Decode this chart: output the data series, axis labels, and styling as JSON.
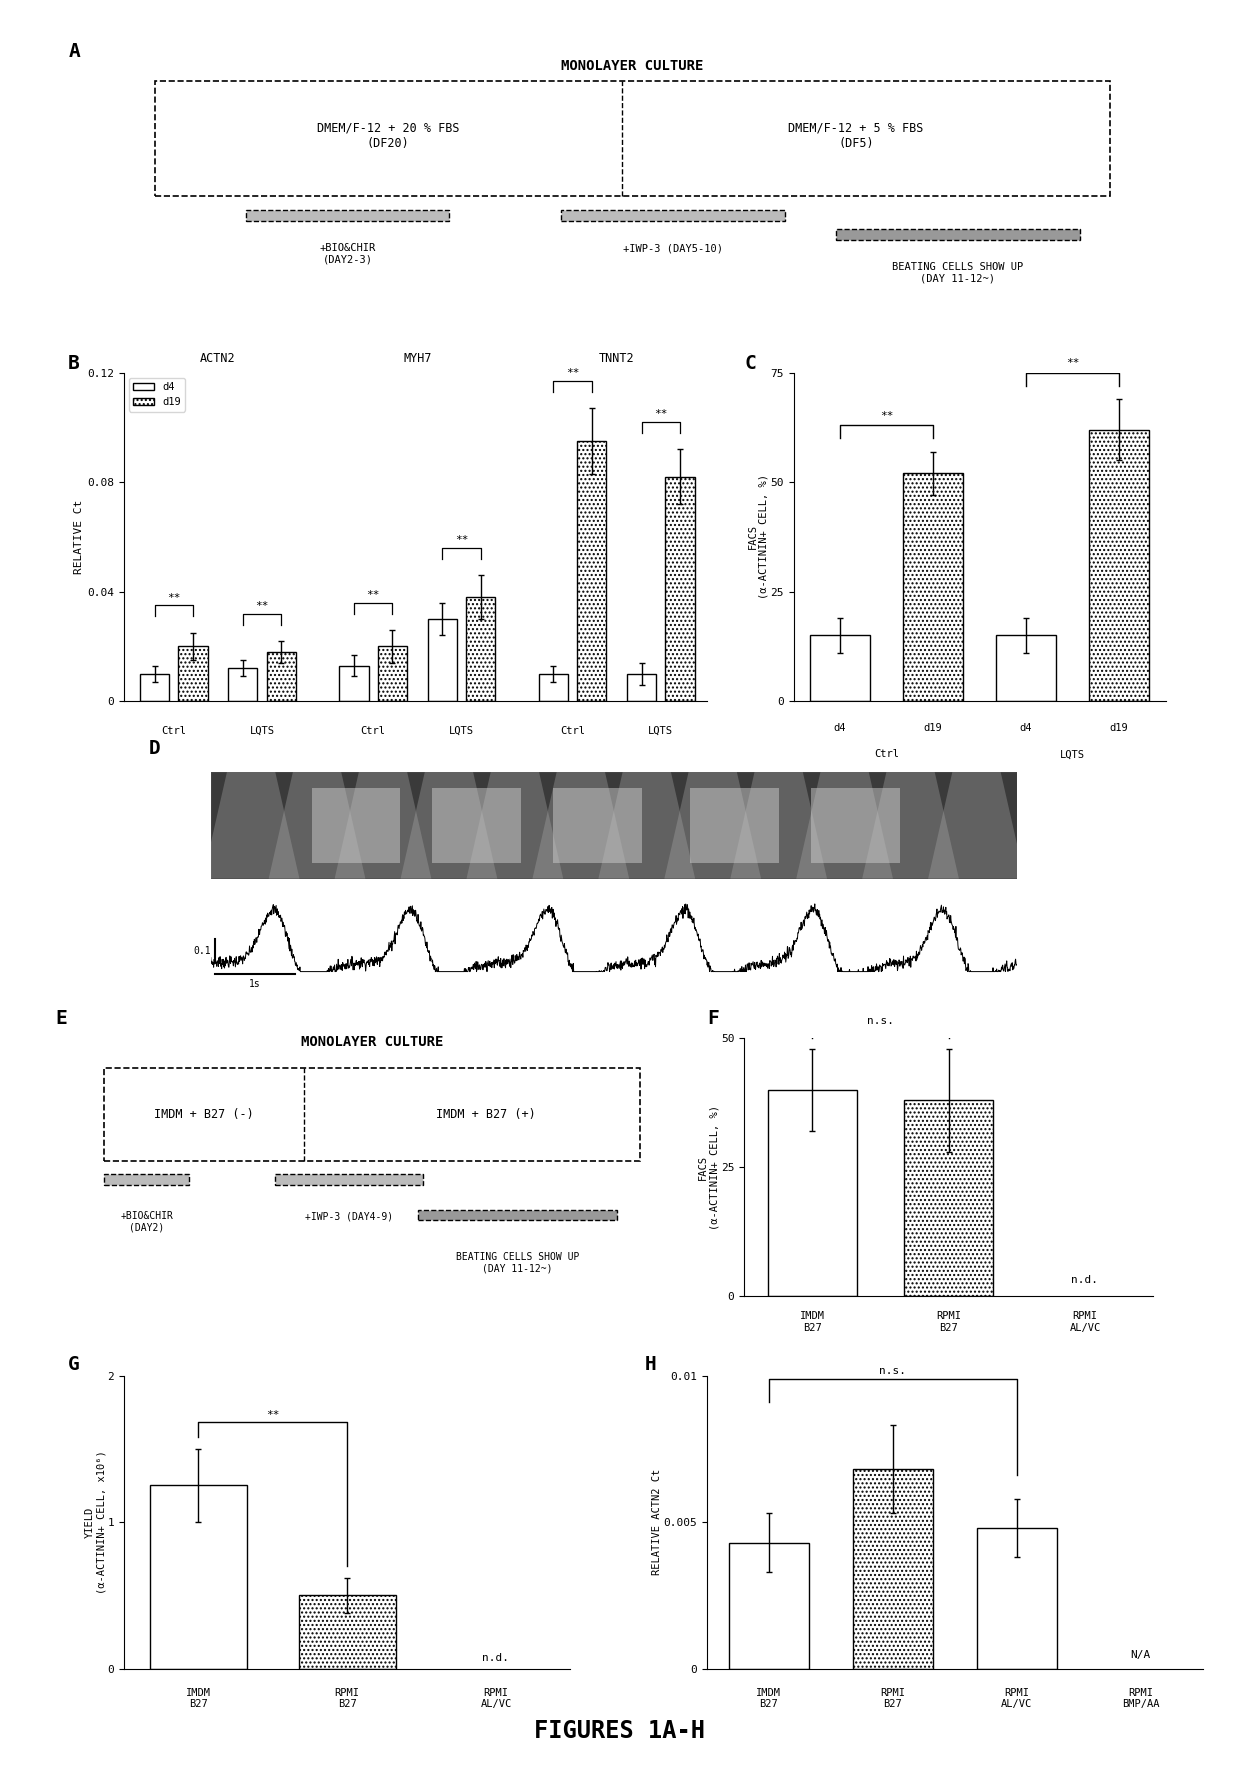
{
  "title": "FIGURES 1A-H",
  "panel_A": {
    "title": "MONOLAYER CULTURE",
    "box1_label": "DMEM/F-12 + 20 % FBS\n(DF20)",
    "box2_label": "DMEM/F-12 + 5 % FBS\n(DF5)",
    "ann1": "+BIO&CHIR\n(DAY2-3)",
    "ann2": "+IWP-3 (DAY5-10)",
    "ann3": "BEATING CELLS SHOW UP\n(DAY 11-12~)"
  },
  "panel_B": {
    "ylabel": "RELATIVE Ct",
    "ylim": [
      0,
      0.12
    ],
    "yticks": [
      0,
      0.04,
      0.08,
      0.12
    ],
    "groups": [
      "ACTN2",
      "MYH7",
      "TNNT2"
    ],
    "d4_ctrl": [
      0.01,
      0.013,
      0.01
    ],
    "d4_lqts": [
      0.012,
      0.03,
      0.01
    ],
    "d19_ctrl": [
      0.02,
      0.02,
      0.095
    ],
    "d19_lqts": [
      0.018,
      0.038,
      0.082
    ],
    "d4_ctrl_err": [
      0.003,
      0.004,
      0.003
    ],
    "d4_lqts_err": [
      0.003,
      0.006,
      0.004
    ],
    "d19_ctrl_err": [
      0.005,
      0.006,
      0.012
    ],
    "d19_lqts_err": [
      0.004,
      0.008,
      0.01
    ],
    "legend_d4": "d4",
    "legend_d19": "d19"
  },
  "panel_C": {
    "ylabel": "FACS\n(α-ACTININ+ CELL, %)",
    "ylim": [
      0,
      75
    ],
    "yticks": [
      0,
      25,
      50,
      75
    ],
    "values": [
      15,
      52,
      15,
      62
    ],
    "errors": [
      4,
      5,
      4,
      7
    ]
  },
  "panel_E": {
    "title": "MONOLAYER CULTURE",
    "box1_label": "IMDM + B27 (-)",
    "box2_label": "IMDM + B27 (+)",
    "ann1": "+BIO&CHIR\n(DAY2)",
    "ann2": "+IWP-3 (DAY4-9)",
    "ann3": "BEATING CELLS SHOW UP\n(DAY 11-12~)"
  },
  "panel_F": {
    "ylabel": "FACS\n(α-ACTININ+ CELL, %)",
    "ylim": [
      0,
      50
    ],
    "yticks": [
      0,
      25,
      50
    ],
    "values": [
      40,
      38
    ],
    "errors": [
      8,
      10
    ],
    "nd_label": "n.d.",
    "sig_label": "n.s."
  },
  "panel_G": {
    "ylabel": "YIELD\n(α-ACTININ+ CELL, x10⁶)",
    "ylim": [
      0,
      2
    ],
    "yticks": [
      0,
      1,
      2
    ],
    "values": [
      1.25,
      0.5
    ],
    "errors": [
      0.25,
      0.12
    ],
    "nd_label": "n.d.",
    "sig_label": "**"
  },
  "panel_H": {
    "ylabel": "RELATIVE ACTN2 Ct",
    "ylim": [
      0,
      0.01
    ],
    "yticks": [
      0,
      0.005,
      0.01
    ],
    "values": [
      0.0043,
      0.0068,
      0.0048
    ],
    "errors": [
      0.001,
      0.0015,
      0.001
    ],
    "na_label": "N/A",
    "sig_label": "n.s."
  },
  "bg_color": "#ffffff",
  "hatch": "...."
}
